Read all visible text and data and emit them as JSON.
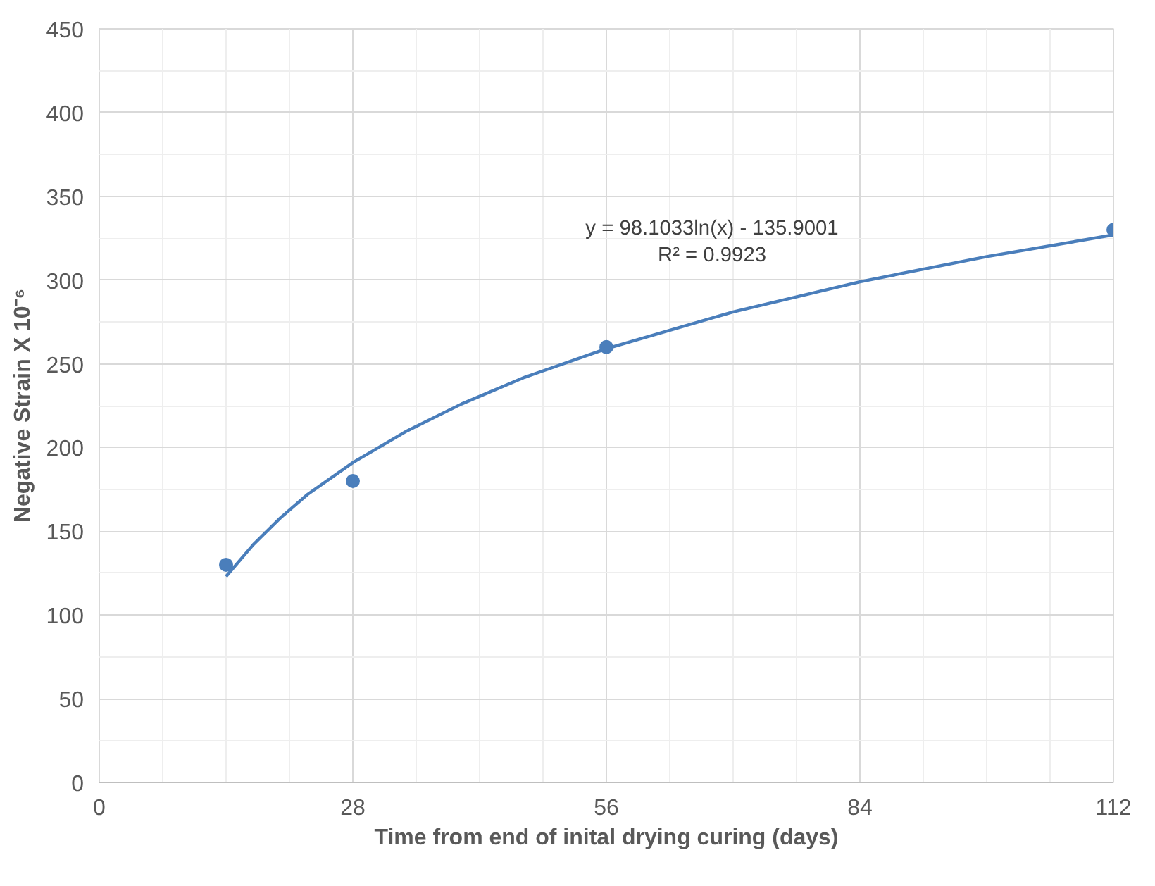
{
  "chart_data": {
    "type": "scatter",
    "xlabel": "Time from end of inital drying curing (days)",
    "ylabel": "Negative Strain X 10⁻⁶",
    "xlim": [
      0,
      112
    ],
    "xticks": [
      0,
      28,
      56,
      84,
      112
    ],
    "ylim": [
      0,
      450
    ],
    "yticks": [
      0,
      50,
      100,
      150,
      200,
      250,
      300,
      350,
      400,
      450
    ],
    "grid": true,
    "marker": "circle",
    "series": [
      {
        "color": "#4a7ebb",
        "x": [
          14,
          28,
          56,
          112
        ],
        "values": [
          130,
          180,
          260,
          330
        ]
      },
      {
        "type": "line",
        "color": "#4a7ebb",
        "line_style": "solid",
        "marker": "none",
        "x": [
          14,
          17,
          20,
          23,
          28,
          34,
          40,
          47,
          56,
          70,
          84,
          98,
          112
        ],
        "values": [
          123,
          142,
          158,
          172,
          191,
          210,
          226,
          242,
          259,
          281,
          299,
          314,
          327
        ]
      }
    ],
    "annotations": [
      "y = 98.1033ln(x) - 135.9001",
      "R² = 0.9923"
    ]
  }
}
